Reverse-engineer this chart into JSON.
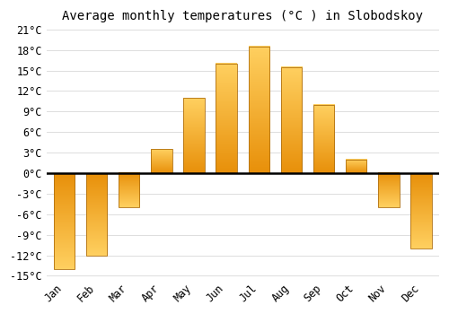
{
  "months": [
    "Jan",
    "Feb",
    "Mar",
    "Apr",
    "May",
    "Jun",
    "Jul",
    "Aug",
    "Sep",
    "Oct",
    "Nov",
    "Dec"
  ],
  "temperatures": [
    -14,
    -12,
    -5,
    3.5,
    11,
    16,
    18.5,
    15.5,
    10,
    2,
    -5,
    -11
  ],
  "bar_color_top": "#FFD060",
  "bar_color_bottom": "#E8900A",
  "bar_edge_color": "#B07010",
  "title": "Average monthly temperatures (°C ) in Slobodskoy",
  "ylim_min": -15,
  "ylim_max": 21,
  "yticks": [
    -15,
    -12,
    -9,
    -6,
    -3,
    0,
    3,
    6,
    9,
    12,
    15,
    18,
    21
  ],
  "background_color": "#FFFFFF",
  "grid_color": "#DDDDDD",
  "title_fontsize": 10,
  "tick_fontsize": 8.5
}
